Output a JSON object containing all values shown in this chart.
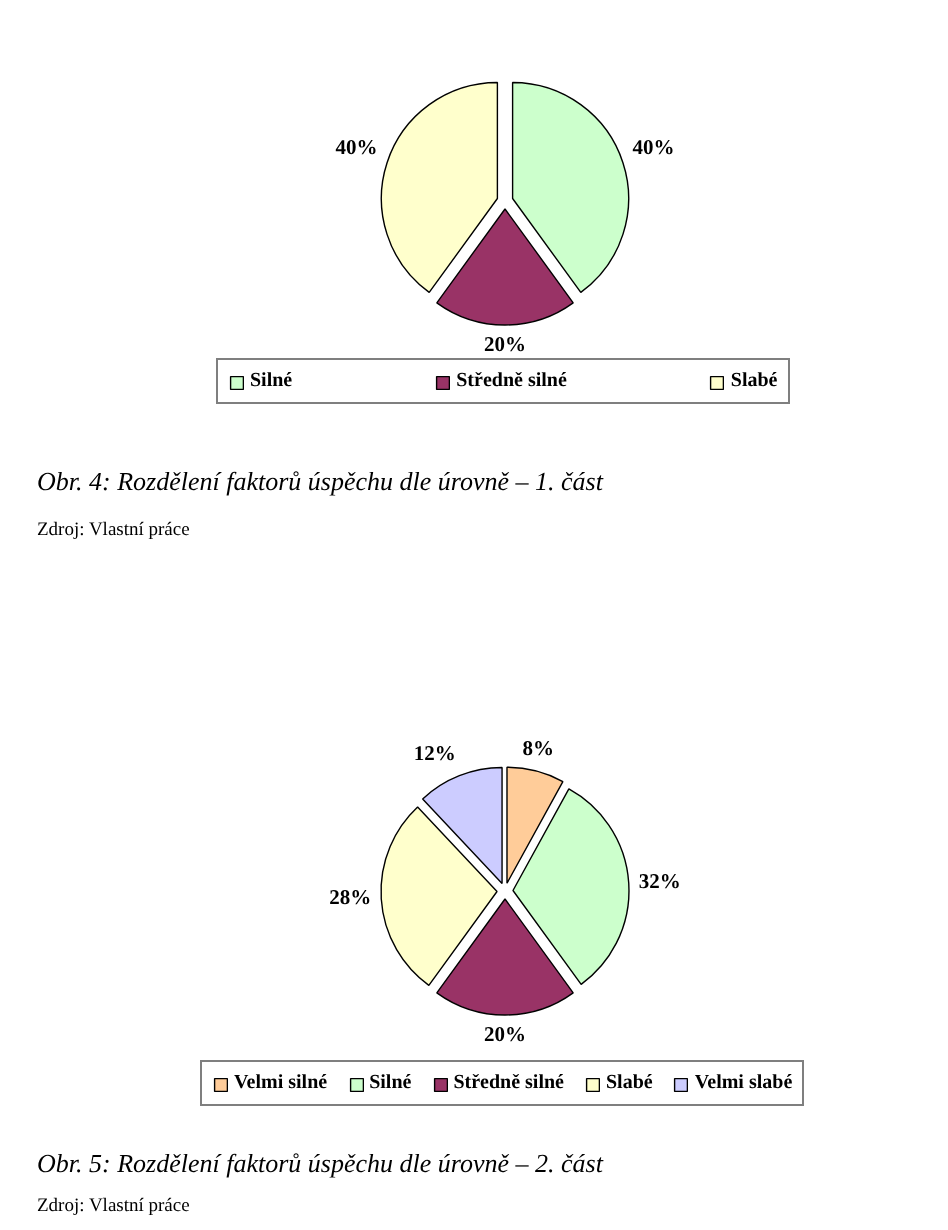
{
  "chart_data": [
    {
      "type": "pie",
      "title": "Obr. 4: Rozdělení faktorů úspěchu dle úrovně – 1. část",
      "categories": [
        "Silné",
        "Středně silné",
        "Slabé"
      ],
      "values": [
        40,
        20,
        40
      ],
      "colors": [
        "#ccffcc",
        "#993366",
        "#ffffcc"
      ],
      "value_labels": [
        "40%",
        "20%",
        "40%"
      ],
      "legend": "bottom",
      "annotations": [
        "Zdroj: Vlastní práce"
      ]
    },
    {
      "type": "pie",
      "title": "Obr. 5: Rozdělení faktorů úspěchu dle úrovně – 2. část",
      "categories": [
        "Velmi silné",
        "Silné",
        "Středně silné",
        "Slabé",
        "Velmi slabé"
      ],
      "values": [
        8,
        32,
        20,
        28,
        12
      ],
      "colors": [
        "#ffcc99",
        "#ccffcc",
        "#993366",
        "#ffffcc",
        "#ccccff"
      ],
      "value_labels": [
        "8%",
        "32%",
        "20%",
        "28%",
        "12%"
      ],
      "legend": "bottom",
      "annotations": [
        "Zdroj: Vlastní práce"
      ]
    }
  ]
}
